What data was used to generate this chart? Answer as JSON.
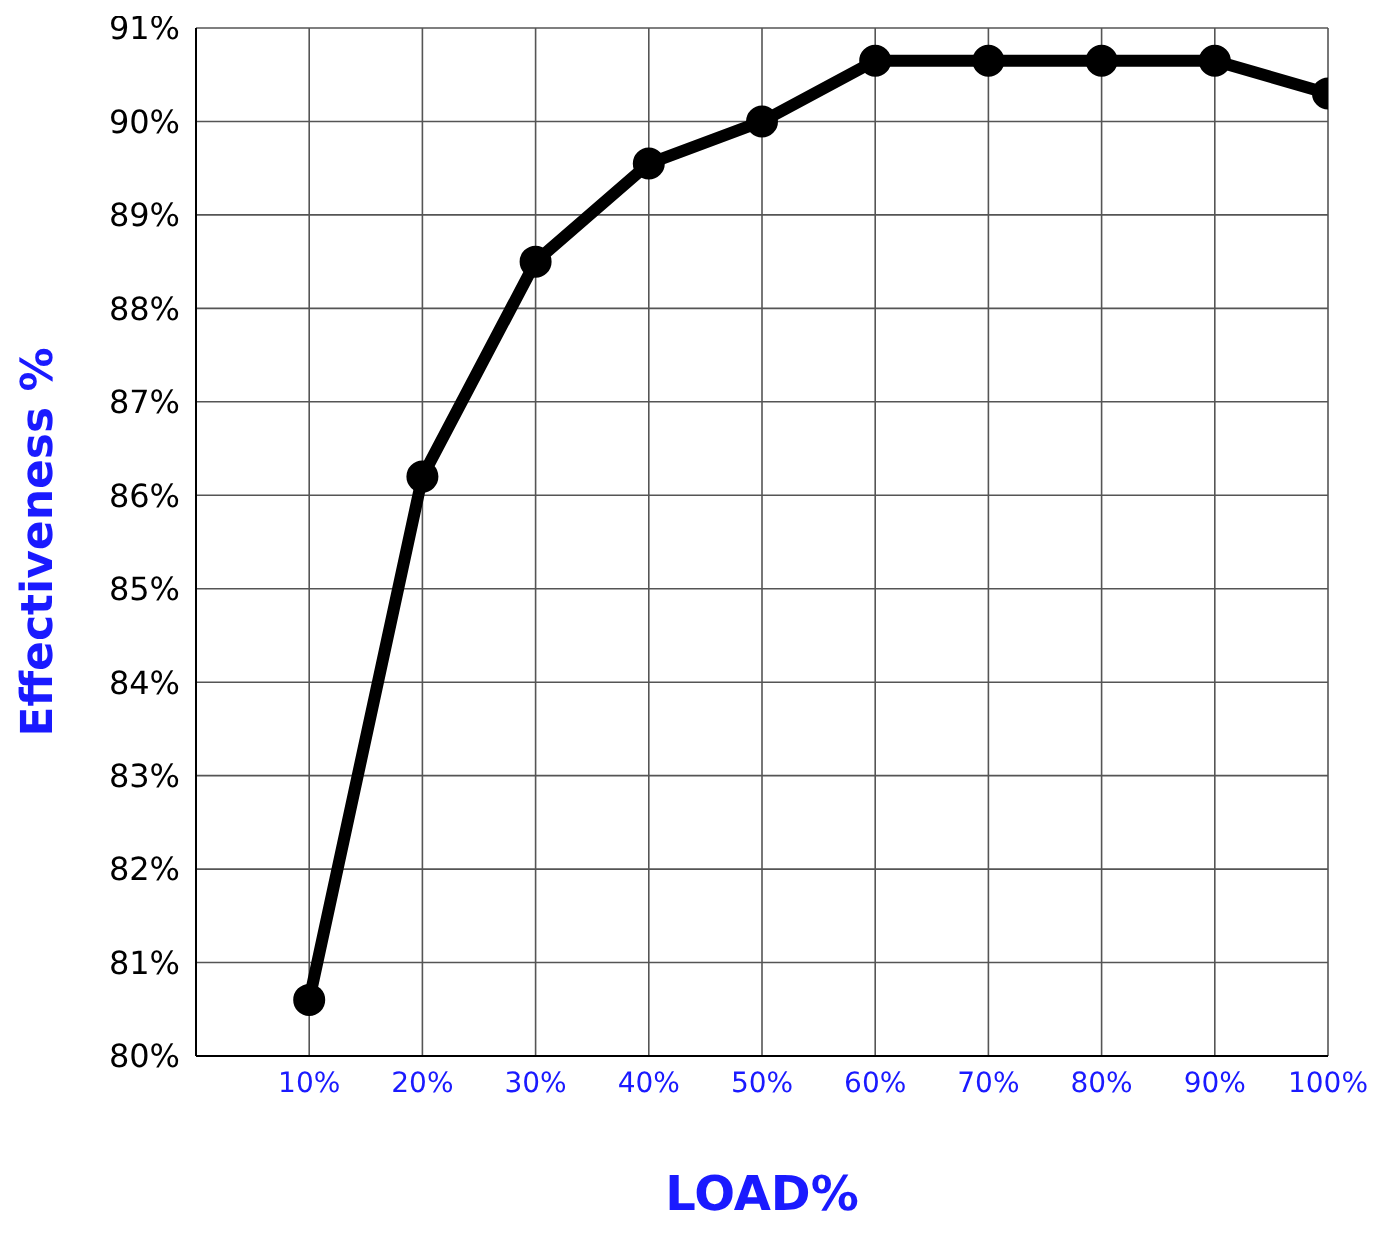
{
  "chart_data": {
    "type": "line",
    "xlabel": "LOAD%",
    "ylabel": "Effectiveness %",
    "x": [
      10,
      20,
      30,
      40,
      50,
      60,
      70,
      80,
      90,
      100
    ],
    "series": [
      {
        "color": "#000000",
        "values": [
          80.6,
          86.2,
          88.5,
          89.55,
          90.0,
          90.65,
          90.65,
          90.65,
          90.65,
          90.3
        ]
      }
    ],
    "xlim": [
      0,
      100
    ],
    "xticks": [
      {
        "value": 10,
        "label": "10%"
      },
      {
        "value": 20,
        "label": "20%"
      },
      {
        "value": 30,
        "label": "30%"
      },
      {
        "value": 40,
        "label": "40%"
      },
      {
        "value": 50,
        "label": "50%"
      },
      {
        "value": 60,
        "label": "60%"
      },
      {
        "value": 70,
        "label": "70%"
      },
      {
        "value": 80,
        "label": "80%"
      },
      {
        "value": 90,
        "label": "90%"
      },
      {
        "value": 100,
        "label": "100%"
      }
    ],
    "ylim": [
      80,
      91
    ],
    "yticks": [
      {
        "value": 80,
        "label": "80%"
      },
      {
        "value": 81,
        "label": "81%"
      },
      {
        "value": 82,
        "label": "82%"
      },
      {
        "value": 83,
        "label": "83%"
      },
      {
        "value": 84,
        "label": "84%"
      },
      {
        "value": 85,
        "label": "85%"
      },
      {
        "value": 86,
        "label": "86%"
      },
      {
        "value": 87,
        "label": "87%"
      },
      {
        "value": 88,
        "label": "88%"
      },
      {
        "value": 89,
        "label": "89%"
      },
      {
        "value": 90,
        "label": "90%"
      },
      {
        "value": 91,
        "label": "91%"
      }
    ],
    "grid": true,
    "marker": "circle",
    "line_style": "solid"
  }
}
